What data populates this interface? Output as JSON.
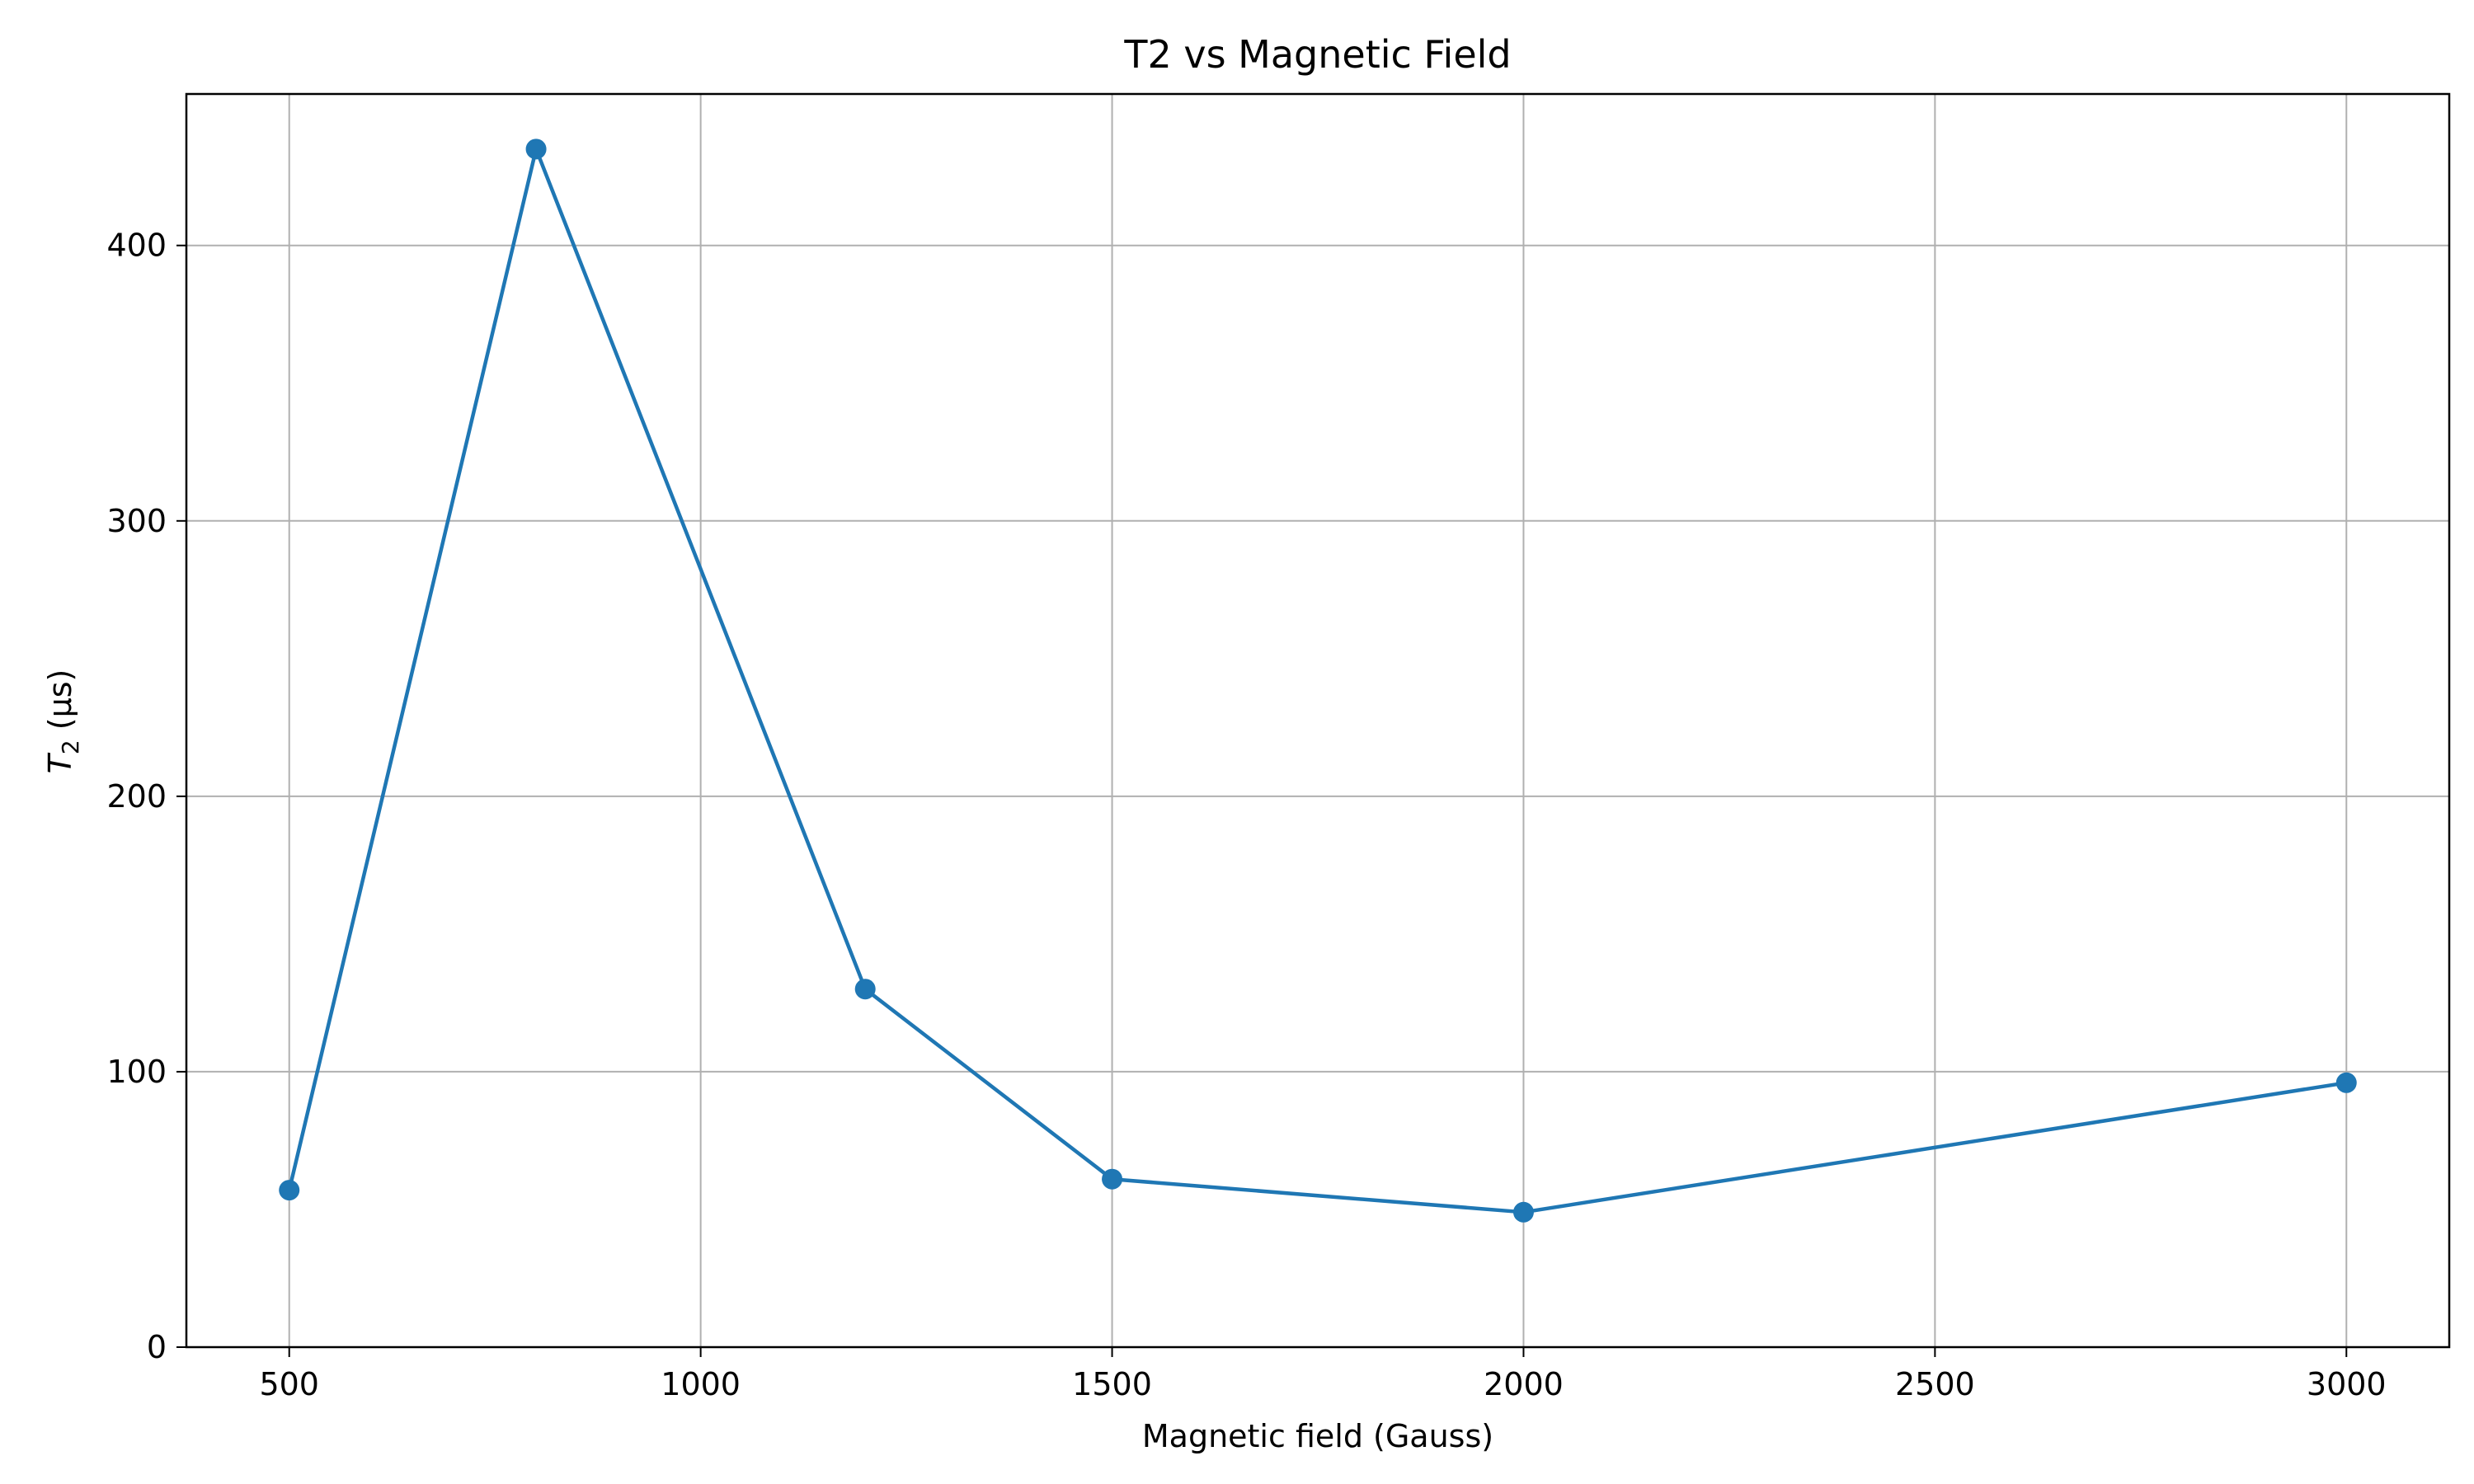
{
  "chart_data": {
    "type": "line",
    "title": "T2 vs Magnetic Field",
    "xlabel": "Magnetic field (Gauss)",
    "ylabel": {
      "main": "T",
      "subscript": "2",
      "unit": " (μs)"
    },
    "xlim": [
      375,
      3125
    ],
    "ylim": [
      0,
      455
    ],
    "x_ticks": [
      500,
      1000,
      1500,
      2000,
      2500,
      3000
    ],
    "y_ticks": [
      0,
      100,
      200,
      300,
      400
    ],
    "grid": true,
    "series": [
      {
        "x": [
          500,
          800,
          1200,
          1500,
          2000,
          3000
        ],
        "y": [
          57,
          435,
          130,
          61,
          49,
          96
        ],
        "color": "#1f77b4",
        "marker": "circle"
      }
    ]
  }
}
